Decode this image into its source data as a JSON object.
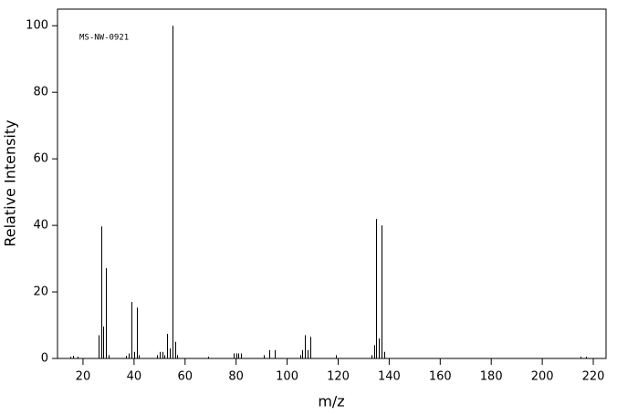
{
  "chart_data": {
    "type": "bar",
    "annotation": "MS-NW-0921",
    "x_label": "m/z",
    "y_label": "Relative Intensity",
    "x": [
      15,
      16,
      18,
      26,
      27,
      28,
      29,
      30,
      37,
      38,
      39,
      40,
      41,
      42,
      49,
      50,
      51,
      52,
      53,
      54,
      55,
      56,
      57,
      69,
      79,
      80,
      81,
      82,
      91,
      93,
      95,
      105,
      106,
      107,
      108,
      109,
      119,
      133,
      134,
      135,
      136,
      137,
      138,
      215,
      217
    ],
    "values": [
      0.5,
      0.8,
      0.5,
      7,
      39.7,
      9.6,
      27.1,
      1,
      0.8,
      1.5,
      17,
      2,
      15.3,
      1,
      1,
      2,
      2,
      1,
      7.4,
      3,
      100,
      5,
      1,
      0.5,
      1.5,
      1.5,
      1.5,
      1.5,
      1,
      2.5,
      2.5,
      1,
      2.5,
      7,
      2.5,
      6.5,
      1,
      1,
      4,
      41.9,
      6,
      40,
      2,
      0.5,
      0.5
    ],
    "color": "#000000",
    "xlim": [
      10,
      225
    ],
    "xticks": [
      20,
      40,
      60,
      80,
      100,
      120,
      140,
      160,
      180,
      200,
      220
    ],
    "ylim": [
      0,
      105
    ],
    "yticks": [
      0,
      20,
      40,
      60,
      80,
      100
    ]
  }
}
